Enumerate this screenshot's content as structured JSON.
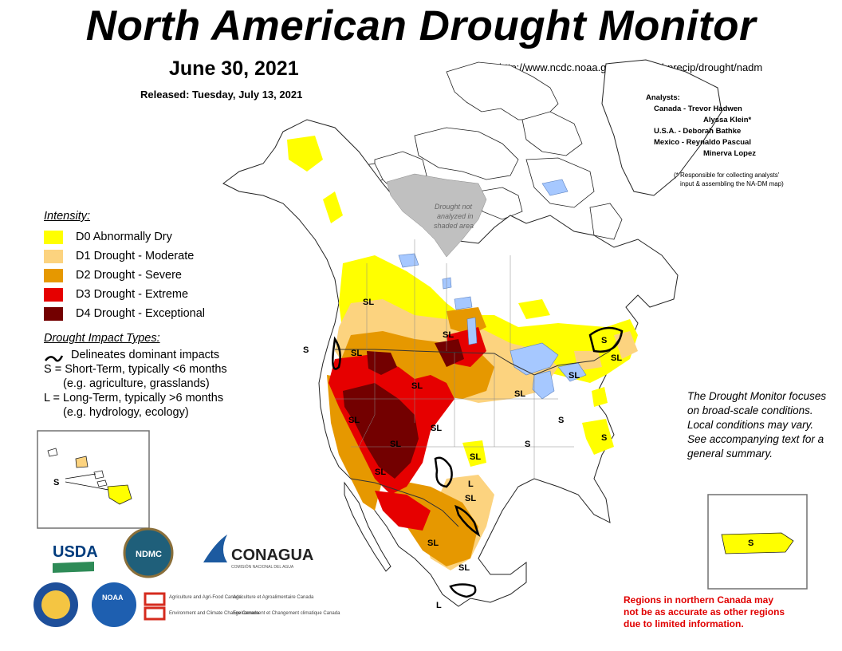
{
  "header": {
    "title": "North American Drought Monitor",
    "date": "June 30, 2021",
    "released": "Released: Tuesday, July 13, 2021",
    "url": "http://www.ncdc.noaa.gov/temp-and-precip/drought/nadm"
  },
  "analysts": {
    "heading": "Analysts:",
    "rows": [
      "Canada - Trevor Hadwen",
      "Alyssa Klein*",
      "U.S.A. - Deborah Bathke",
      "Mexico - Reynaldo Pascual",
      "Minerva Lopez"
    ],
    "note_1": "(* Responsible for collecting analysts'",
    "note_2": "input & assembling the NA-DM map)"
  },
  "legend": {
    "title": "Intensity:",
    "items": [
      {
        "label": "D0 Abnormally Dry",
        "color": "#ffff00"
      },
      {
        "label": "D1 Drought - Moderate",
        "color": "#fcd37f"
      },
      {
        "label": "D2 Drought - Severe",
        "color": "#e69800"
      },
      {
        "label": "D3 Drought - Extreme",
        "color": "#e60000"
      },
      {
        "label": "D4 Drought - Exceptional",
        "color": "#730000"
      }
    ]
  },
  "impact": {
    "title": "Drought Impact Types:",
    "line_1": "Delineates dominant impacts",
    "line_2": "S = Short-Term, typically <6 months",
    "line_3": "(e.g. agriculture, grasslands)",
    "line_4": "L = Long-Term, typically >6 months",
    "line_5": "(e.g. hydrology, ecology)"
  },
  "note": "The Drought Monitor focuses on broad-scale conditions.  Local conditions may vary.  See accompanying text for a general summary.",
  "warning": {
    "line_1": "Regions in northern Canada may",
    "line_2": "not be as accurate as other regions",
    "line_3": "due to limited information."
  },
  "map": {
    "not_analyzed_1": "Drought not",
    "not_analyzed_2": "analyzed in",
    "not_analyzed_3": "shaded area",
    "labels": [
      "SL",
      "SL",
      "SL",
      "SL",
      "SL",
      "SL",
      "SL",
      "SL",
      "SL",
      "SL",
      "SL",
      "SL",
      "SL",
      "S",
      "S",
      "S",
      "L",
      "L",
      "SL",
      "SL",
      "S",
      "S"
    ],
    "inset_hawaii_label": "S",
    "inset_pr_label": "S",
    "colors": {
      "land": "#ffffff",
      "water": "#a6c8ff",
      "not_analyzed": "#c0c0c0",
      "border": "#333333"
    }
  },
  "logos": {
    "usda": "USDA",
    "ndmc": "NDMC",
    "conagua": "CONAGUA",
    "conagua_sub": "COMISIÓN NACIONAL DEL AGUA",
    "noaa": "NOAA",
    "agr_en": "Agriculture and Agri-Food Canada",
    "agr_fr": "Agriculture et Agroalimentaire Canada",
    "env_en": "Environment and Climate Change Canada",
    "env_fr": "Environnement et Changement climatique Canada"
  }
}
